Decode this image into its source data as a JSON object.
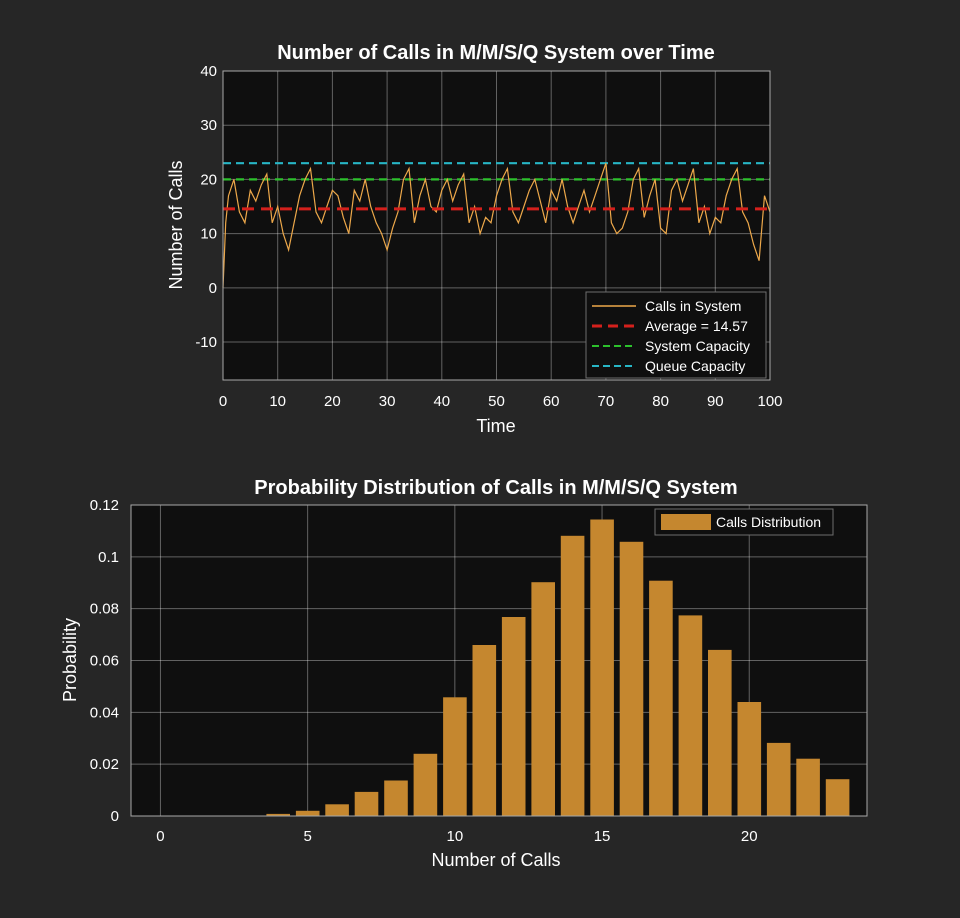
{
  "chart_data": [
    {
      "type": "line",
      "title": "Number of Calls in M/M/S/Q System over Time",
      "xlabel": "Time",
      "ylabel": "Number of Calls",
      "xlim": [
        0,
        100
      ],
      "ylim": [
        -17,
        40
      ],
      "xticks": [
        0,
        10,
        20,
        30,
        40,
        50,
        60,
        70,
        80,
        90,
        100
      ],
      "yticks": [
        -10,
        0,
        10,
        20,
        30,
        40
      ],
      "grid": true,
      "legend_position": "bottom-right",
      "series": [
        {
          "name": "Calls in System",
          "style": "solid",
          "color": "#EDA84A",
          "x": [
            0,
            0.5,
            1,
            2,
            3,
            4,
            5,
            6,
            7,
            8,
            9,
            10,
            11,
            12,
            13,
            14,
            15,
            16,
            17,
            18,
            19,
            20,
            21,
            22,
            23,
            24,
            25,
            26,
            27,
            28,
            29,
            30,
            31,
            32,
            33,
            34,
            35,
            36,
            37,
            38,
            39,
            40,
            41,
            42,
            43,
            44,
            45,
            46,
            47,
            48,
            49,
            50,
            51,
            52,
            53,
            54,
            55,
            56,
            57,
            58,
            59,
            60,
            61,
            62,
            63,
            64,
            65,
            66,
            67,
            68,
            69,
            70,
            71,
            72,
            73,
            74,
            75,
            76,
            77,
            78,
            79,
            80,
            81,
            82,
            83,
            84,
            85,
            86,
            87,
            88,
            89,
            90,
            91,
            92,
            93,
            94,
            95,
            96,
            97,
            98,
            99,
            100
          ],
          "y": [
            0,
            12,
            17,
            20,
            14,
            12,
            18,
            16,
            19,
            21,
            12,
            15,
            10,
            7,
            12,
            17,
            20,
            22,
            14,
            12,
            15,
            18,
            17,
            13,
            10,
            18,
            16,
            20,
            15,
            12,
            10,
            7,
            11,
            14,
            20,
            22,
            12,
            17,
            20,
            15,
            14,
            18,
            20,
            16,
            19,
            21,
            12,
            15,
            10,
            13,
            12,
            17,
            20,
            22,
            14,
            12,
            15,
            18,
            20,
            16,
            12,
            18,
            16,
            20,
            15,
            12,
            15,
            18,
            14,
            17,
            20,
            23,
            12,
            10,
            11,
            14,
            20,
            22,
            13,
            17,
            20,
            11,
            10,
            18,
            20,
            16,
            19,
            22,
            12,
            15,
            10,
            13,
            12,
            17,
            20,
            22,
            14,
            12,
            8,
            5,
            17,
            14
          ]
        },
        {
          "name": "Average = 14.57",
          "style": "dashed",
          "color": "#D4201C",
          "x": [
            0,
            100
          ],
          "y": [
            14.57,
            14.57
          ]
        },
        {
          "name": "System Capacity",
          "style": "dashed",
          "color": "#2CC12C",
          "x": [
            0,
            100
          ],
          "y": [
            20,
            20
          ]
        },
        {
          "name": "Queue Capacity",
          "style": "dashed",
          "color": "#27B6C6",
          "x": [
            0,
            100
          ],
          "y": [
            23,
            23
          ]
        }
      ]
    },
    {
      "type": "bar",
      "title": "Probability Distribution of Calls in M/M/S/Q System",
      "xlabel": "Number of Calls",
      "ylabel": "Probability",
      "xlim": [
        -1,
        24
      ],
      "ylim": [
        0,
        0.12
      ],
      "xticks": [
        0,
        5,
        10,
        15,
        20
      ],
      "yticks": [
        0,
        0.02,
        0.04,
        0.06,
        0.08,
        0.1,
        0.12
      ],
      "ytick_labels": [
        "0",
        "0.02",
        "0.04",
        "0.06",
        "0.08",
        "0.1",
        "0.12"
      ],
      "grid": true,
      "legend_position": "top-right",
      "color": "#C5872F",
      "series": [
        {
          "name": "Calls Distribution",
          "x": [
            0,
            1,
            2,
            3,
            4,
            5,
            6,
            7,
            8,
            9,
            10,
            11,
            12,
            13,
            14,
            15,
            16,
            17,
            18,
            19,
            20,
            21,
            22,
            23
          ],
          "values": [
            0,
            0,
            0,
            0,
            0.0008,
            0.002,
            0.0045,
            0.0093,
            0.0137,
            0.024,
            0.0458,
            0.066,
            0.0768,
            0.0902,
            0.1081,
            0.1144,
            0.1058,
            0.0908,
            0.0774,
            0.0641,
            0.044,
            0.0282,
            0.0221,
            0.0142
          ]
        }
      ]
    }
  ]
}
